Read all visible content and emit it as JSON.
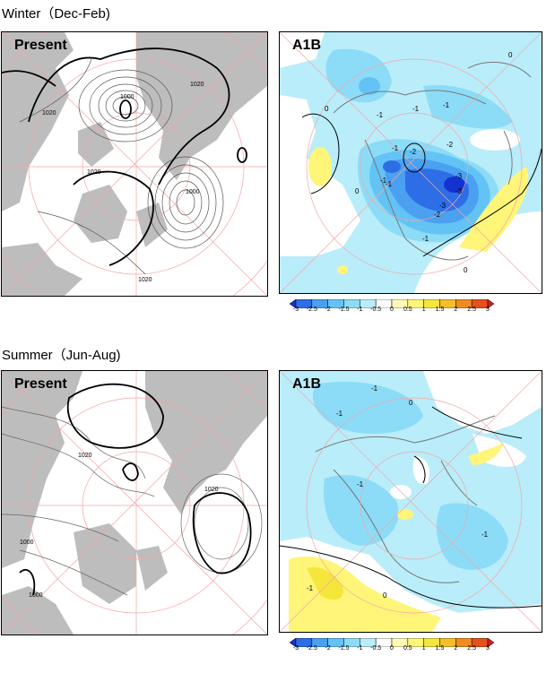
{
  "sections": [
    {
      "title": "Winter（Dec-Feb)",
      "present": {
        "label": "Present",
        "contour_labels": [
          "1000",
          "1020",
          "1020",
          "1020",
          "1000",
          "1020"
        ]
      },
      "a1b": {
        "label": "A1B",
        "contour_labels": [
          "0",
          "-1",
          "-1",
          "-1",
          "-1",
          "-1",
          "-2",
          "-2",
          "-3",
          "-3",
          "-3",
          "-2",
          "-1",
          "0",
          "0",
          "0",
          "-1"
        ]
      }
    },
    {
      "title": "Summer（Jun-Aug)",
      "present": {
        "label": "Present",
        "contour_labels": [
          "1020",
          "1020",
          "1000",
          "1000"
        ]
      },
      "a1b": {
        "label": "A1B",
        "contour_labels": [
          "-1",
          "-1",
          "0",
          "-1",
          "-1",
          "-1",
          "0"
        ]
      }
    }
  ],
  "colorbar": {
    "ticks": [
      "-3",
      "-2.5",
      "-2",
      "-1.5",
      "-1",
      "-0.5",
      "0",
      "0.5",
      "1",
      "1.5",
      "2",
      "2.5",
      "3"
    ],
    "colors": [
      "#1432d2",
      "#2d6ee6",
      "#4ba0f0",
      "#64c3f5",
      "#8cdcf8",
      "#b9edfa",
      "#ffffff",
      "#fffab4",
      "#fff578",
      "#f5e63c",
      "#f5be28",
      "#f08c1e",
      "#e6501e",
      "#d21e1e"
    ]
  }
}
